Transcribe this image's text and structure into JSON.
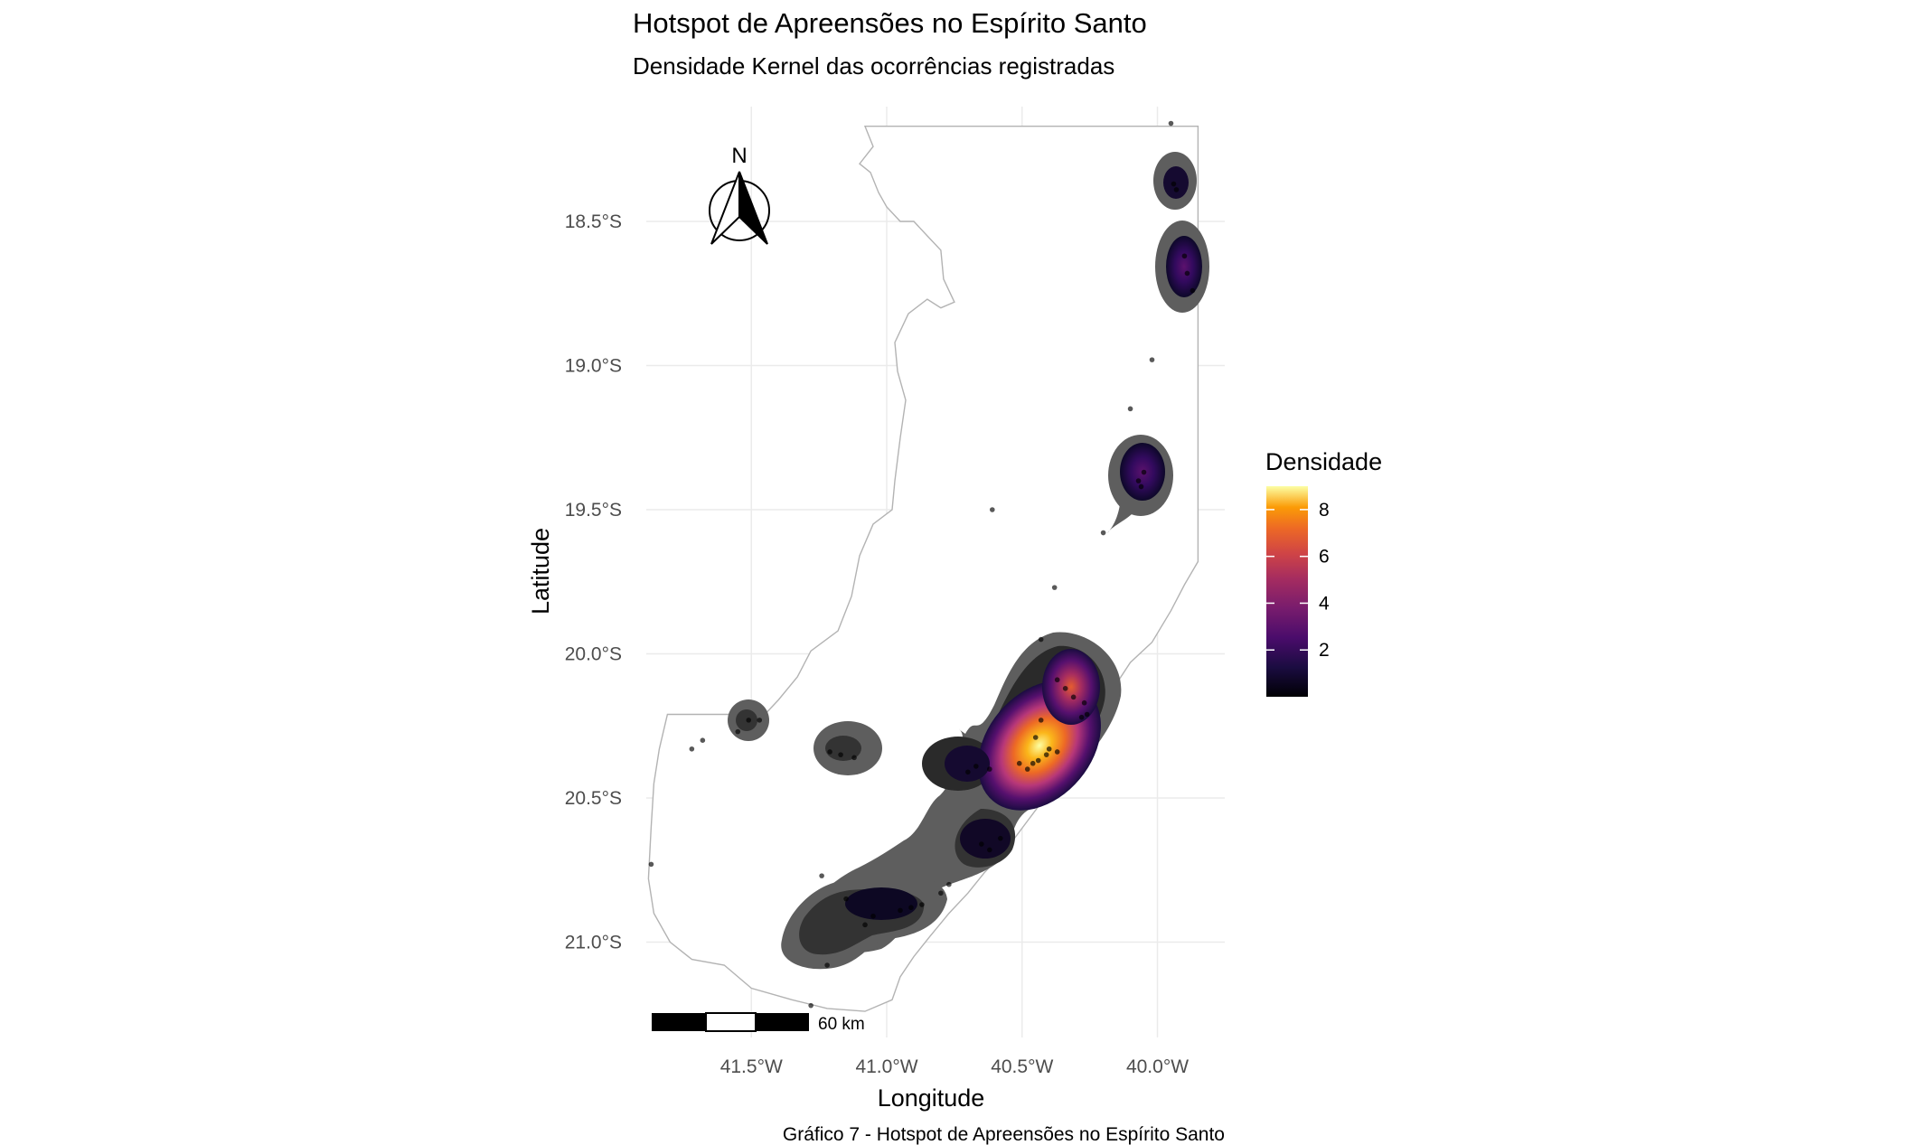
{
  "title": "Hotspot de Apreensões no Espírito Santo",
  "subtitle": "Densidade Kernel das ocorrências registradas",
  "caption": "Gráfico 7 - Hotspot de Apreensões no Espírito Santo",
  "north_label": "N",
  "scale_bar_label": "60 km",
  "colors": {
    "grid": "#ebebeb",
    "border": "#b3b3b3",
    "density_low": "#000004",
    "density_mid": "#781c6d",
    "density_high": "#fcffa4",
    "outer_halo": "#5a5a5a"
  },
  "chart_data": {
    "type": "map",
    "xlabel": "Longitude",
    "ylabel": "Latitude",
    "xlim": [
      -41.9,
      -39.85
    ],
    "ylim": [
      -21.27,
      -18.2
    ],
    "x_ticks": [
      {
        "value": -41.5,
        "label": "41.5°W"
      },
      {
        "value": -41.0,
        "label": "41.0°W"
      },
      {
        "value": -40.5,
        "label": "40.5°W"
      },
      {
        "value": -40.0,
        "label": "40.0°W"
      }
    ],
    "y_ticks": [
      {
        "value": -18.5,
        "label": "18.5°S"
      },
      {
        "value": -19.0,
        "label": "19.0°S"
      },
      {
        "value": -19.5,
        "label": "19.5°S"
      },
      {
        "value": -20.0,
        "label": "20.0°S"
      },
      {
        "value": -20.5,
        "label": "20.5°S"
      },
      {
        "value": -21.0,
        "label": "21.0°S"
      }
    ],
    "grid": true,
    "legend": {
      "title": "Densidade",
      "placement": "right",
      "min": 0,
      "max": 9,
      "ticks": [
        2,
        4,
        6,
        8
      ]
    },
    "hotspots": [
      {
        "lon": -40.44,
        "lat": -20.36,
        "peak": 9.0
      },
      {
        "lon": -40.33,
        "lat": -20.14,
        "peak": 5.5
      },
      {
        "lon": -40.63,
        "lat": -20.4,
        "peak": 1.2
      },
      {
        "lon": -40.63,
        "lat": -20.67,
        "peak": 1.1
      },
      {
        "lon": -40.91,
        "lat": -20.88,
        "peak": 0.9
      },
      {
        "lon": -41.07,
        "lat": -20.92,
        "peak": 0.9
      },
      {
        "lon": -41.19,
        "lat": -20.35,
        "peak": 0.6
      },
      {
        "lon": -41.52,
        "lat": -20.24,
        "peak": 0.5
      },
      {
        "lon": -40.06,
        "lat": -19.4,
        "peak": 1.3
      },
      {
        "lon": -39.91,
        "lat": -18.69,
        "peak": 1.4
      },
      {
        "lon": -39.94,
        "lat": -18.36,
        "peak": 0.7
      }
    ],
    "points": [
      {
        "lon": -39.95,
        "lat": -18.16
      },
      {
        "lon": -39.93,
        "lat": -18.39
      },
      {
        "lon": -39.94,
        "lat": -18.37
      },
      {
        "lon": -39.9,
        "lat": -18.62
      },
      {
        "lon": -39.89,
        "lat": -18.68
      },
      {
        "lon": -39.87,
        "lat": -18.74
      },
      {
        "lon": -40.02,
        "lat": -18.98
      },
      {
        "lon": -40.1,
        "lat": -19.15
      },
      {
        "lon": -40.05,
        "lat": -19.37
      },
      {
        "lon": -40.06,
        "lat": -19.42
      },
      {
        "lon": -40.07,
        "lat": -19.4
      },
      {
        "lon": -40.2,
        "lat": -19.58
      },
      {
        "lon": -40.61,
        "lat": -19.5
      },
      {
        "lon": -40.38,
        "lat": -19.77
      },
      {
        "lon": -40.43,
        "lat": -19.95
      },
      {
        "lon": -40.37,
        "lat": -20.09
      },
      {
        "lon": -40.34,
        "lat": -20.12
      },
      {
        "lon": -40.31,
        "lat": -20.15
      },
      {
        "lon": -40.27,
        "lat": -20.17
      },
      {
        "lon": -40.26,
        "lat": -20.21
      },
      {
        "lon": -40.28,
        "lat": -20.22
      },
      {
        "lon": -40.43,
        "lat": -20.23
      },
      {
        "lon": -40.45,
        "lat": -20.29
      },
      {
        "lon": -40.4,
        "lat": -20.33
      },
      {
        "lon": -40.37,
        "lat": -20.34
      },
      {
        "lon": -40.41,
        "lat": -20.35
      },
      {
        "lon": -40.44,
        "lat": -20.37
      },
      {
        "lon": -40.46,
        "lat": -20.38
      },
      {
        "lon": -40.48,
        "lat": -20.4
      },
      {
        "lon": -40.51,
        "lat": -20.38
      },
      {
        "lon": -40.67,
        "lat": -20.39
      },
      {
        "lon": -40.7,
        "lat": -20.41
      },
      {
        "lon": -40.62,
        "lat": -20.4
      },
      {
        "lon": -40.65,
        "lat": -20.66
      },
      {
        "lon": -40.62,
        "lat": -20.68
      },
      {
        "lon": -40.58,
        "lat": -20.64
      },
      {
        "lon": -40.77,
        "lat": -20.8
      },
      {
        "lon": -40.8,
        "lat": -20.83
      },
      {
        "lon": -40.87,
        "lat": -20.87
      },
      {
        "lon": -40.91,
        "lat": -20.88
      },
      {
        "lon": -40.95,
        "lat": -20.89
      },
      {
        "lon": -41.05,
        "lat": -20.91
      },
      {
        "lon": -41.08,
        "lat": -20.94
      },
      {
        "lon": -41.15,
        "lat": -20.85
      },
      {
        "lon": -41.24,
        "lat": -20.77
      },
      {
        "lon": -41.22,
        "lat": -21.08
      },
      {
        "lon": -41.28,
        "lat": -21.22
      },
      {
        "lon": -41.17,
        "lat": -20.35
      },
      {
        "lon": -41.21,
        "lat": -20.34
      },
      {
        "lon": -41.12,
        "lat": -20.36
      },
      {
        "lon": -41.51,
        "lat": -20.23
      },
      {
        "lon": -41.47,
        "lat": -20.23
      },
      {
        "lon": -41.55,
        "lat": -20.27
      },
      {
        "lon": -41.68,
        "lat": -20.3
      },
      {
        "lon": -41.72,
        "lat": -20.33
      },
      {
        "lon": -41.87,
        "lat": -20.73
      }
    ],
    "state_outline": [
      [
        -41.08,
        -18.17
      ],
      [
        -39.85,
        -18.17
      ],
      [
        -39.85,
        -19.68
      ],
      [
        -39.9,
        -19.76
      ],
      [
        -39.95,
        -19.85
      ],
      [
        -40.02,
        -19.96
      ],
      [
        -40.1,
        -20.03
      ],
      [
        -40.17,
        -20.13
      ],
      [
        -40.22,
        -20.25
      ],
      [
        -40.28,
        -20.33
      ],
      [
        -40.33,
        -20.4
      ],
      [
        -40.4,
        -20.48
      ],
      [
        -40.48,
        -20.58
      ],
      [
        -40.56,
        -20.68
      ],
      [
        -40.64,
        -20.76
      ],
      [
        -40.7,
        -20.83
      ],
      [
        -40.77,
        -20.9
      ],
      [
        -40.84,
        -20.98
      ],
      [
        -40.9,
        -21.05
      ],
      [
        -40.95,
        -21.12
      ],
      [
        -40.98,
        -21.2
      ],
      [
        -41.08,
        -21.24
      ],
      [
        -41.22,
        -21.23
      ],
      [
        -41.35,
        -21.2
      ],
      [
        -41.5,
        -21.16
      ],
      [
        -41.6,
        -21.08
      ],
      [
        -41.72,
        -21.06
      ],
      [
        -41.8,
        -21.0
      ],
      [
        -41.86,
        -20.9
      ],
      [
        -41.88,
        -20.78
      ],
      [
        -41.87,
        -20.6
      ],
      [
        -41.86,
        -20.45
      ],
      [
        -41.84,
        -20.33
      ],
      [
        -41.81,
        -20.21
      ],
      [
        -41.58,
        -20.21
      ],
      [
        -41.45,
        -20.21
      ],
      [
        -41.4,
        -20.16
      ],
      [
        -41.33,
        -20.08
      ],
      [
        -41.28,
        -19.99
      ],
      [
        -41.18,
        -19.92
      ],
      [
        -41.13,
        -19.8
      ],
      [
        -41.1,
        -19.66
      ],
      [
        -41.05,
        -19.55
      ],
      [
        -40.98,
        -19.5
      ],
      [
        -40.97,
        -19.4
      ],
      [
        -40.95,
        -19.25
      ],
      [
        -40.93,
        -19.12
      ],
      [
        -40.96,
        -19.02
      ],
      [
        -40.97,
        -18.92
      ],
      [
        -40.92,
        -18.82
      ],
      [
        -40.85,
        -18.77
      ],
      [
        -40.8,
        -18.8
      ],
      [
        -40.75,
        -18.78
      ],
      [
        -40.79,
        -18.7
      ],
      [
        -40.8,
        -18.6
      ],
      [
        -40.85,
        -18.55
      ],
      [
        -40.9,
        -18.5
      ],
      [
        -40.95,
        -18.5
      ],
      [
        -41.0,
        -18.45
      ],
      [
        -41.03,
        -18.4
      ],
      [
        -41.06,
        -18.33
      ],
      [
        -41.1,
        -18.3
      ],
      [
        -41.05,
        -18.24
      ],
      [
        -41.08,
        -18.17
      ]
    ]
  }
}
